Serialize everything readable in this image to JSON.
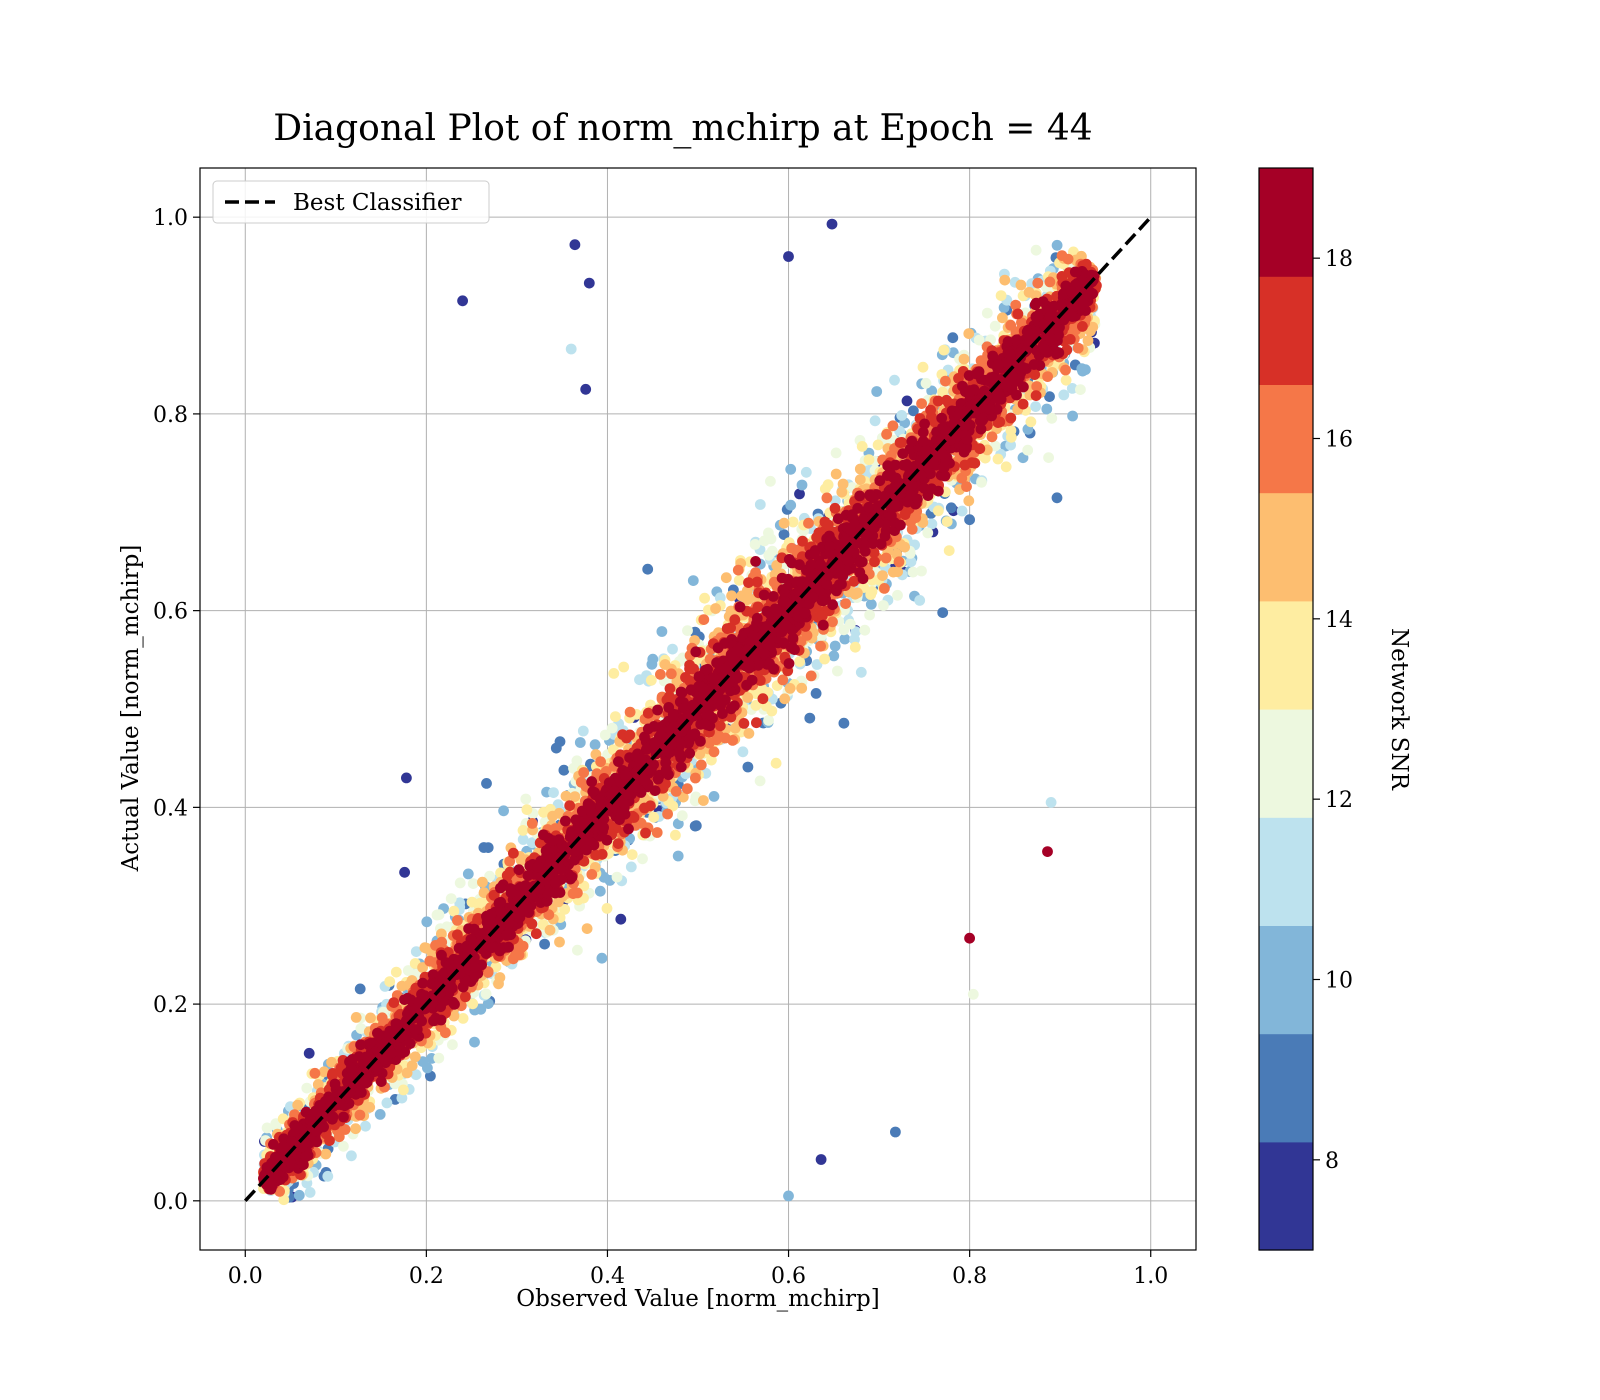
{
  "chart_data": {
    "type": "scatter",
    "title": "Diagonal Plot of norm_mchirp at Epoch = 44",
    "xlabel": "Observed Value [norm_mchirp]",
    "ylabel": "Actual Value [norm_mchirp]",
    "xlim": [
      -0.05,
      1.05
    ],
    "ylim": [
      -0.05,
      1.05
    ],
    "xticks": [
      0.0,
      0.2,
      0.4,
      0.6,
      0.8,
      1.0
    ],
    "yticks": [
      0.0,
      0.2,
      0.4,
      0.6,
      0.8,
      1.0
    ],
    "xtick_labels": [
      "0.0",
      "0.2",
      "0.4",
      "0.6",
      "0.8",
      "1.0"
    ],
    "ytick_labels": [
      "0.0",
      "0.2",
      "0.4",
      "0.6",
      "0.8",
      "1.0"
    ],
    "grid": true,
    "legend": {
      "placement": "upper-left",
      "entries": [
        {
          "label": "Best Classifier",
          "style": "dashed",
          "color": "#000000"
        }
      ]
    },
    "reference_line": {
      "name": "Best Classifier",
      "x": [
        0.0,
        1.0
      ],
      "y": [
        0.0,
        1.0
      ],
      "color": "#000000",
      "style": "dashed"
    },
    "colorbar": {
      "label": "Network SNR",
      "range": [
        7,
        19
      ],
      "ticks": [
        8,
        10,
        12,
        14,
        16,
        18
      ],
      "tick_labels": [
        "8",
        "10",
        "12",
        "14",
        "16",
        "18"
      ],
      "colormap": "RdYlBu_r",
      "colors": [
        "#313695",
        "#4a7bb7",
        "#82b6d9",
        "#bde2ee",
        "#edf8df",
        "#feeda1",
        "#fdbe70",
        "#f57748",
        "#d73027",
        "#a50026"
      ]
    },
    "series": [
      {
        "color_by": "Network SNR",
        "note_on_data": "dense cloud of thousands of points concentrated along y = x; higher SNR points lie closest to the diagonal, lower SNR points scatter further away",
        "x_range": [
          0.02,
          0.94
        ],
        "y_range": [
          0.0,
          1.0
        ],
        "outliers": [
          {
            "x": 0.24,
            "y": 0.915,
            "snr": 7.5
          },
          {
            "x": 0.364,
            "y": 0.972,
            "snr": 7.5
          },
          {
            "x": 0.38,
            "y": 0.933,
            "snr": 7.5
          },
          {
            "x": 0.36,
            "y": 0.866,
            "snr": 11.5
          },
          {
            "x": 0.376,
            "y": 0.825,
            "snr": 7.5
          },
          {
            "x": 0.178,
            "y": 0.43,
            "snr": 7.5
          },
          {
            "x": 0.176,
            "y": 0.334,
            "snr": 7.5
          },
          {
            "x": 0.636,
            "y": 0.042,
            "snr": 7.5
          },
          {
            "x": 0.718,
            "y": 0.07,
            "snr": 8.5
          },
          {
            "x": 0.6,
            "y": 0.005,
            "snr": 9.5
          },
          {
            "x": 0.886,
            "y": 0.355,
            "snr": 18.5
          },
          {
            "x": 0.89,
            "y": 0.405,
            "snr": 11.5
          },
          {
            "x": 0.804,
            "y": 0.21,
            "snr": 12.5
          },
          {
            "x": 0.8,
            "y": 0.267,
            "snr": 18.5
          },
          {
            "x": 0.648,
            "y": 0.993,
            "snr": 7.5
          },
          {
            "x": 0.6,
            "y": 0.96,
            "snr": 7.5
          }
        ]
      }
    ]
  }
}
